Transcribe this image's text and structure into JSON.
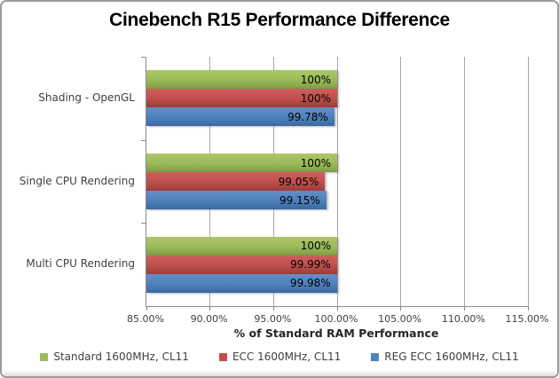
{
  "window": {
    "background": "#ffffff",
    "border_color": "#9c9c9c"
  },
  "chart_data": {
    "type": "bar",
    "orientation": "horizontal",
    "title": "Cinebench R15 Performance Difference",
    "xlabel": "% of Standard RAM Performance",
    "ylabel": "",
    "categories": [
      "Shading - OpenGL",
      "Single CPU Rendering",
      "Multi CPU Rendering"
    ],
    "series": [
      {
        "name": "Standard 1600MHz, CL11",
        "color": "#9bbb59",
        "gradient": [
          "#aec768",
          "#9bbb59",
          "#7f9c44"
        ],
        "values": [
          100,
          100,
          100
        ],
        "labels": [
          "100%",
          "100%",
          "100%"
        ]
      },
      {
        "name": "ECC 1600MHz, CL11",
        "color": "#c0504d",
        "gradient": [
          "#cd5f5c",
          "#c0504d",
          "#9c3c39"
        ],
        "values": [
          100,
          99.05,
          99.99
        ],
        "labels": [
          "100%",
          "99.05%",
          "99.99%"
        ]
      },
      {
        "name": "REG ECC 1600MHz, CL11",
        "color": "#4f81bd",
        "gradient": [
          "#6290c7",
          "#4f81bd",
          "#3c699f"
        ],
        "values": [
          99.78,
          99.15,
          99.98
        ],
        "labels": [
          "99.78%",
          "99.15%",
          "99.98%"
        ]
      }
    ],
    "xlim": [
      85,
      115
    ],
    "xticks": [
      {
        "value": 85,
        "label": "85.00%"
      },
      {
        "value": 90,
        "label": "90.00%"
      },
      {
        "value": 95,
        "label": "95.00%"
      },
      {
        "value": 100,
        "label": "100.00%"
      },
      {
        "value": 105,
        "label": "105.00%"
      },
      {
        "value": 110,
        "label": "110.00%"
      },
      {
        "value": 115,
        "label": "115.00%"
      }
    ],
    "grid": true,
    "legend_position": "bottom",
    "data_label_color": "#000000",
    "axis_color": "#8a8a8a",
    "gridline_color": "#a6a6a6",
    "text_color": "#3f3f3f"
  }
}
